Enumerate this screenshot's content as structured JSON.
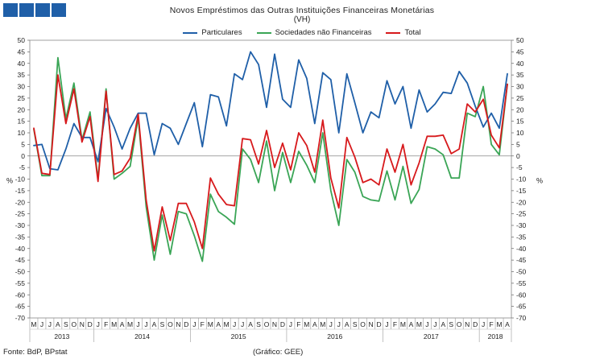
{
  "header": {
    "title": "Novos Empréstimos das Outras Instituições Financeiras Monetárias",
    "subtitle": "(VH)"
  },
  "footer": {
    "source": "Fonte: BdP, BPstat",
    "credit": "(Gráfico: GEE)"
  },
  "colors": {
    "particulares": "#1f5fa8",
    "sociedades": "#3aa556",
    "total": "#d7191c",
    "logo": "#1f5fa8"
  },
  "chart_data": {
    "type": "line",
    "title": "Novos Empréstimos das Outras Instituições Financeiras Monetárias",
    "subtitle": "(VH)",
    "ylabel_left": "%",
    "ylabel_right": "%",
    "ylim": [
      -70,
      50
    ],
    "yticks": [
      50,
      45,
      40,
      35,
      30,
      25,
      20,
      15,
      10,
      5,
      0,
      -5,
      -10,
      -15,
      -20,
      -25,
      -30,
      -35,
      -40,
      -45,
      -50,
      -55,
      -60,
      -65,
      -70
    ],
    "grid": false,
    "legend_position": "top",
    "month_labels": [
      "M",
      "J",
      "J",
      "A",
      "S",
      "O",
      "N",
      "D",
      "J",
      "F",
      "M",
      "A",
      "M",
      "J",
      "J",
      "A",
      "S",
      "O",
      "N",
      "D",
      "J",
      "F",
      "M",
      "A",
      "M",
      "J",
      "J",
      "A",
      "S",
      "O",
      "N",
      "D",
      "J",
      "F",
      "M",
      "A",
      "M",
      "J",
      "J",
      "A",
      "S",
      "O",
      "N",
      "D",
      "J",
      "F",
      "M",
      "A",
      "M",
      "J",
      "J",
      "A",
      "S",
      "O",
      "N",
      "D",
      "J",
      "F",
      "M",
      "A"
    ],
    "years": [
      {
        "label": "2013",
        "start": 0,
        "end": 8
      },
      {
        "label": "2014",
        "start": 8,
        "end": 20
      },
      {
        "label": "2015",
        "start": 20,
        "end": 32
      },
      {
        "label": "2016",
        "start": 32,
        "end": 44
      },
      {
        "label": "2017",
        "start": 44,
        "end": 56
      },
      {
        "label": "2018",
        "start": 56,
        "end": 60
      }
    ],
    "series": [
      {
        "name": "Particulares",
        "color": "#1f5fa8",
        "values": [
          4.5,
          5,
          -5.5,
          -6,
          3,
          14,
          8,
          8,
          -2.5,
          20.5,
          12.5,
          3,
          12,
          18.5,
          18.5,
          0.5,
          14,
          12,
          5,
          14,
          23,
          4,
          26.5,
          25.5,
          13,
          35.5,
          33,
          45,
          39.5,
          21,
          44,
          24.5,
          21,
          41.5,
          33.5,
          14,
          36,
          33,
          10,
          35.5,
          23,
          10,
          19,
          16.5,
          32.5,
          22.5,
          30,
          12,
          28.5,
          19,
          22.5,
          27.5,
          27,
          36.5,
          31.5,
          21.5,
          12.5,
          18.5,
          12,
          35.5
        ]
      },
      {
        "name": "Sociedades não Financeiras",
        "color": "#3aa556",
        "values": [
          11.5,
          -8.5,
          -8.5,
          42.5,
          16,
          31.5,
          7,
          19,
          -10,
          29,
          -10,
          -7.5,
          -4.5,
          16.5,
          -22,
          -45,
          -25.5,
          -42.5,
          -24,
          -25,
          -34.5,
          -45.5,
          -16.5,
          -24,
          -26.5,
          -29.5,
          3,
          -1.5,
          -11.5,
          6.5,
          -15,
          1.5,
          -11.5,
          2,
          -4,
          -11.5,
          10,
          -15,
          -30,
          -1.5,
          -7,
          -17.5,
          -19,
          -19.5,
          -6.5,
          -19,
          -4.5,
          -20.5,
          -14.5,
          4,
          3,
          0.5,
          -9.5,
          -9.5,
          18.5,
          17,
          30,
          5,
          0.5,
          31
        ]
      },
      {
        "name": "Total",
        "color": "#d7191c",
        "values": [
          12,
          -7.5,
          -8,
          35,
          14,
          29,
          6,
          17,
          -11,
          28,
          -8,
          -6.5,
          -1,
          18,
          -19,
          -41,
          -22,
          -36.5,
          -20.5,
          -20.5,
          -28.5,
          -40,
          -9.5,
          -16.5,
          -21,
          -21.5,
          7.5,
          7,
          -3.5,
          11,
          -5,
          5.5,
          -6,
          10,
          4.5,
          -7,
          15.5,
          -9.5,
          -22.5,
          8,
          -0.5,
          -11.5,
          -10,
          -12.5,
          3,
          -7,
          5,
          -12.5,
          -3,
          8.5,
          8.5,
          9,
          1,
          3,
          22.5,
          19,
          24.5,
          9,
          3.5,
          31
        ]
      }
    ]
  }
}
